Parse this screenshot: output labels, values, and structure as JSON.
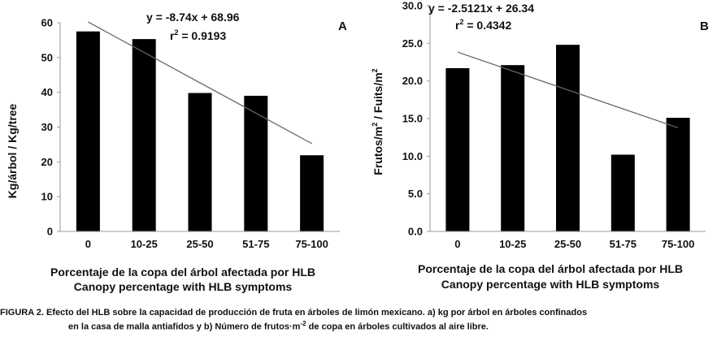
{
  "chart_data": [
    {
      "type": "bar",
      "panel_label": "A",
      "categories": [
        "0",
        "10-25",
        "25-50",
        "51-75",
        "75-100"
      ],
      "values": [
        57.5,
        55.3,
        39.8,
        39.0,
        21.9
      ],
      "ylabel": "Kg/árbol / Kg/tree",
      "xlabel_es": "Porcentaje de la copa del árbol afectada por HLB",
      "xlabel_en": "Canopy percentage with HLB symptoms",
      "ylim": [
        0,
        60
      ],
      "yticks": [
        0,
        10,
        20,
        30,
        40,
        50,
        60
      ],
      "ytick_labels": [
        "0",
        "10",
        "20",
        "30",
        "40",
        "50",
        "60"
      ],
      "trendline": {
        "slope": -8.74,
        "intercept": 68.96
      },
      "equation": "y = -8.74x + 68.96",
      "r2_prefix": "r",
      "r2_sup": "2",
      "r2_value": " = 0.9193"
    },
    {
      "type": "bar",
      "panel_label": "B",
      "categories": [
        "0",
        "10-25",
        "25-50",
        "51-75",
        "75-100"
      ],
      "values": [
        21.7,
        22.1,
        24.8,
        10.2,
        15.1
      ],
      "ylabel_main": "Frutos/m",
      "ylabel_sup1": "2",
      "ylabel_mid": " / Fuits/m",
      "ylabel_sup2": "2",
      "xlabel_es": "Porcentaje de la copa del árbol afectada por HLB",
      "xlabel_en": "Canopy percentage with HLB symptoms",
      "ylim": [
        0,
        30
      ],
      "yticks": [
        0,
        5,
        10,
        15,
        20,
        25,
        30
      ],
      "ytick_labels": [
        "0.0",
        "5.0",
        "10.0",
        "15.0",
        "20.0",
        "25.0",
        "30.0"
      ],
      "trendline": {
        "slope": -2.5121,
        "intercept": 26.34
      },
      "equation": "y = -2.5121x + 26.34",
      "r2_prefix": "r",
      "r2_sup": "2",
      "r2_value": " = 0.4342"
    }
  ],
  "caption": {
    "line1": "FIGURA 2. Efecto del HLB sobre la capacidad de producción de fruta en árboles de limón mexicano. a) kg por árbol en árboles confinados",
    "line2_a": "en la casa de malla antiafidos y b) Número de frutos·m",
    "line2_sup": "-2",
    "line2_b": " de copa en árboles cultivados al aire libre."
  }
}
